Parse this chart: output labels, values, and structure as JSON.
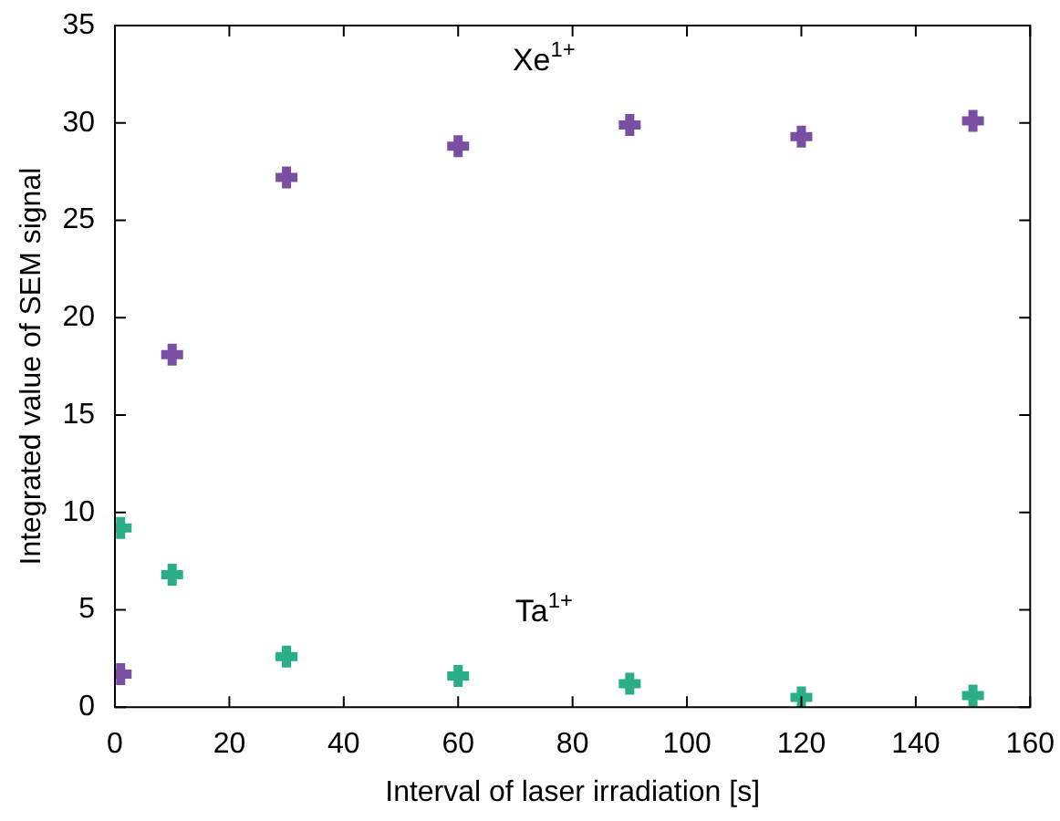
{
  "chart_data": {
    "type": "scatter",
    "xlabel": "Interval of laser irradiation [s]",
    "ylabel": "Integrated value of SEM signal",
    "x": [
      1,
      10,
      30,
      60,
      90,
      120,
      150
    ],
    "series": [
      {
        "name": "Xe$^{1+}$",
        "color": "#7a4fa3",
        "values": [
          1.7,
          18.1,
          27.2,
          28.8,
          29.9,
          29.3,
          30.1
        ]
      },
      {
        "name": "Ta$^{1+}$",
        "color": "#2aae88",
        "values": [
          9.2,
          6.8,
          2.6,
          1.6,
          1.2,
          0.5,
          0.6
        ]
      }
    ],
    "xlim": [
      0,
      160
    ],
    "xticks": [
      0,
      20,
      40,
      60,
      80,
      100,
      120,
      140,
      160
    ],
    "ylim": [
      0,
      35
    ],
    "yticks": [
      0,
      5,
      10,
      15,
      20,
      25,
      30,
      35
    ],
    "grid": false,
    "legend": false,
    "marker": "cross"
  }
}
